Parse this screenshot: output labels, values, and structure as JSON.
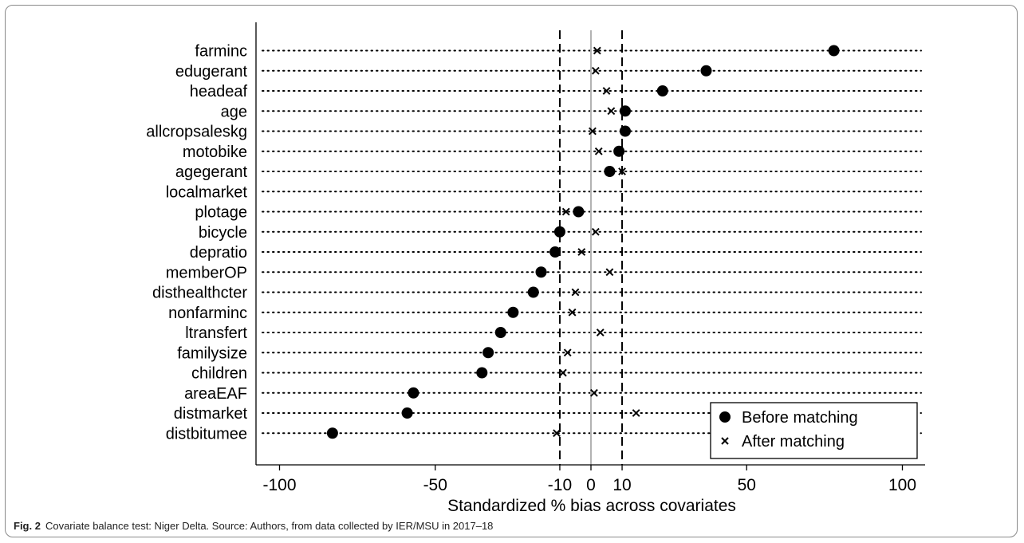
{
  "caption": {
    "label": "Fig. 2",
    "text": "Covariate balance test: Niger Delta. Source: Authors, from data collected by IER/MSU in 2017–18"
  },
  "chart_data": {
    "type": "scatter",
    "title": "",
    "xlabel": "Standardized % bias across covariates",
    "ylabel": "",
    "xlim": [
      -105,
      107
    ],
    "xticks": [
      -100,
      -50,
      -10,
      0,
      10,
      50,
      100
    ],
    "reference_lines": {
      "dashed": [
        -10,
        10
      ],
      "solid_gray": [
        0
      ]
    },
    "grid": "dotted horizontal lines per covariate",
    "legend_position": "bottom-right",
    "categories": [
      "farminc",
      "edugerant",
      "headeaf",
      "age",
      "allcropsaleskg",
      "motobike",
      "agegerant",
      "localmarket",
      "plotage",
      "bicycle",
      "depratio",
      "memberOP",
      "disthealthcter",
      "nonfarminc",
      "ltransfert",
      "familysize",
      "children",
      "areaEAF",
      "distmarket",
      "distbitumee"
    ],
    "series": [
      {
        "name": "Before matching",
        "marker": "circle",
        "values": [
          78,
          37,
          23,
          11,
          11,
          9,
          6,
          null,
          -4,
          -10,
          -11.5,
          -16,
          -18.5,
          -25,
          -29,
          -33,
          -35,
          -57,
          -59,
          -83
        ]
      },
      {
        "name": "After matching",
        "marker": "x",
        "values": [
          2,
          1.5,
          5,
          6.5,
          0.5,
          2.5,
          10,
          null,
          -8,
          1.5,
          -3,
          6,
          -5,
          -6,
          3,
          -7.5,
          -9,
          1,
          14.5,
          -11
        ]
      }
    ]
  }
}
